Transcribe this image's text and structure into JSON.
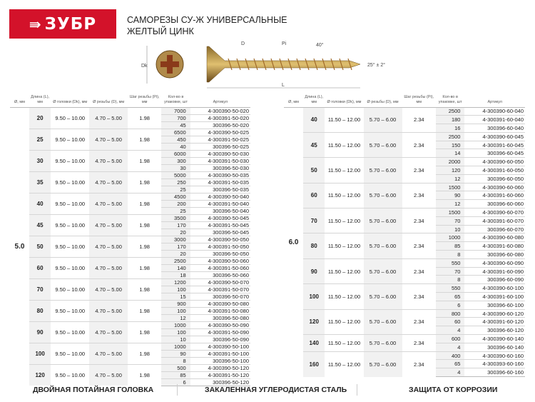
{
  "brand": {
    "logo_text": "ЗУБР",
    "color": "#d3122a"
  },
  "title": {
    "line1": "САМОРЕЗЫ СУ-Ж УНИВЕРСАЛЬНЫЕ",
    "line2": "ЖЕЛТЫЙ ЦИНК"
  },
  "diagram": {
    "dk": "Dk",
    "d": "D",
    "pi": "Pi",
    "angle_thread": "40°",
    "angle_tip": "25° ± 2°",
    "l": "L"
  },
  "headers": {
    "dia": "Ø, мм",
    "len": "Длина (L), мм",
    "head": "Ø головки (Dk), мм",
    "thread": "Ø резьбы (D), мм",
    "pitch": "Шаг резьбы (Pi), мм",
    "qty": "Кол-во в упаковке, шт",
    "art": "Артикул"
  },
  "tables": [
    {
      "dia": "5.0",
      "head": "9.50 – 10.00",
      "thread": "4.70 – 5.00",
      "pitch": "1.98",
      "groups": [
        {
          "len": "20",
          "items": [
            [
              "7000",
              "4-300390-50-020"
            ],
            [
              "700",
              "4-300391-50-020"
            ],
            [
              "45",
              "300396-50-020"
            ]
          ]
        },
        {
          "len": "25",
          "items": [
            [
              "6500",
              "4-300390-50-025"
            ],
            [
              "450",
              "4-300391-50-025"
            ],
            [
              "40",
              "300396-50-025"
            ]
          ]
        },
        {
          "len": "30",
          "items": [
            [
              "6000",
              "4-300390-50-030"
            ],
            [
              "300",
              "4-300391-50-030"
            ],
            [
              "30",
              "300396-50-030"
            ]
          ]
        },
        {
          "len": "35",
          "items": [
            [
              "5000",
              "4-300390-50-035"
            ],
            [
              "250",
              "4-300391-50-035"
            ],
            [
              "25",
              "300396-50-035"
            ]
          ]
        },
        {
          "len": "40",
          "items": [
            [
              "4500",
              "4-300390-50-040"
            ],
            [
              "200",
              "4-300391-50-040"
            ],
            [
              "25",
              "300396-50-040"
            ]
          ]
        },
        {
          "len": "45",
          "items": [
            [
              "3500",
              "4-300390-50-045"
            ],
            [
              "170",
              "4-300391-50-045"
            ],
            [
              "20",
              "300396-50-045"
            ]
          ]
        },
        {
          "len": "50",
          "items": [
            [
              "3000",
              "4-300390-50-050"
            ],
            [
              "170",
              "4-300391-50-050"
            ],
            [
              "20",
              "300396-50-050"
            ]
          ]
        },
        {
          "len": "60",
          "items": [
            [
              "2500",
              "4-300390-50-060"
            ],
            [
              "140",
              "4-300391-50-060"
            ],
            [
              "18",
              "300396-50-060"
            ]
          ]
        },
        {
          "len": "70",
          "items": [
            [
              "1200",
              "4-300390-50-070"
            ],
            [
              "100",
              "4-300391-50-070"
            ],
            [
              "15",
              "300396-50-070"
            ]
          ]
        },
        {
          "len": "80",
          "items": [
            [
              "900",
              "4-300390-50-080"
            ],
            [
              "100",
              "4-300391-50-080"
            ],
            [
              "12",
              "300396-50-080"
            ]
          ]
        },
        {
          "len": "90",
          "items": [
            [
              "1000",
              "4-300390-50-090"
            ],
            [
              "100",
              "4-300391-50-090"
            ],
            [
              "10",
              "300396-50-090"
            ]
          ]
        },
        {
          "len": "100",
          "items": [
            [
              "1000",
              "4-300390-50-100"
            ],
            [
              "90",
              "4-300391-50-100"
            ],
            [
              "8",
              "300396-50-100"
            ]
          ]
        },
        {
          "len": "120",
          "items": [
            [
              "500",
              "4-300390-50-120"
            ],
            [
              "85",
              "4-300391-50-120"
            ],
            [
              "6",
              "300396-50-120"
            ]
          ]
        }
      ]
    },
    {
      "dia": "6.0",
      "head": "11.50 – 12.00",
      "thread": "5.70 – 6.00",
      "pitch": "2.34",
      "groups": [
        {
          "len": "40",
          "items": [
            [
              "2500",
              "4-300390-60-040"
            ],
            [
              "180",
              "4-300391-60-040"
            ],
            [
              "16",
              "300396-60-040"
            ]
          ]
        },
        {
          "len": "45",
          "items": [
            [
              "2500",
              "4-300390-60-045"
            ],
            [
              "150",
              "4-300391-60-045"
            ],
            [
              "14",
              "300396-60-045"
            ]
          ]
        },
        {
          "len": "50",
          "items": [
            [
              "2000",
              "4-300390-60-050"
            ],
            [
              "120",
              "4-300391-60-050"
            ],
            [
              "12",
              "300396-60-050"
            ]
          ]
        },
        {
          "len": "60",
          "items": [
            [
              "1500",
              "4-300390-60-060"
            ],
            [
              "90",
              "4-300391-60-060"
            ],
            [
              "12",
              "300396-60-060"
            ]
          ]
        },
        {
          "len": "70",
          "items": [
            [
              "1500",
              "4-300390-60-070"
            ],
            [
              "70",
              "4-300391-60-070"
            ],
            [
              "10",
              "300396-60-070"
            ]
          ]
        },
        {
          "len": "80",
          "items": [
            [
              "1000",
              "4-300390-60-080"
            ],
            [
              "85",
              "4-300391-60-080"
            ],
            [
              "8",
              "300396-60-080"
            ]
          ]
        },
        {
          "len": "90",
          "items": [
            [
              "550",
              "4-300390-60-090"
            ],
            [
              "70",
              "4-300391-60-090"
            ],
            [
              "8",
              "300396-60-090"
            ]
          ]
        },
        {
          "len": "100",
          "items": [
            [
              "550",
              "4-300390-60-100"
            ],
            [
              "65",
              "4-300391-60-100"
            ],
            [
              "6",
              "300396-60-100"
            ]
          ]
        },
        {
          "len": "120",
          "items": [
            [
              "800",
              "4-300390-60-120"
            ],
            [
              "60",
              "4-300391-60-120"
            ],
            [
              "4",
              "300396-60-120"
            ]
          ]
        },
        {
          "len": "140",
          "items": [
            [
              "600",
              "4-300390-60-140"
            ],
            [
              "4",
              "300396-60-140"
            ]
          ]
        },
        {
          "len": "160",
          "items": [
            [
              "400",
              "4-300390-60-160"
            ],
            [
              "65",
              "4-300393-60-160"
            ],
            [
              "4",
              "300396-60-160"
            ]
          ]
        }
      ]
    }
  ],
  "footer": [
    "ДВОЙНАЯ ПОТАЙНАЯ ГОЛОВКА",
    "ЗАКАЛЕННАЯ УГЛЕРОДИСТАЯ СТАЛЬ",
    "ЗАЩИТА ОТ КОРРОЗИИ"
  ]
}
